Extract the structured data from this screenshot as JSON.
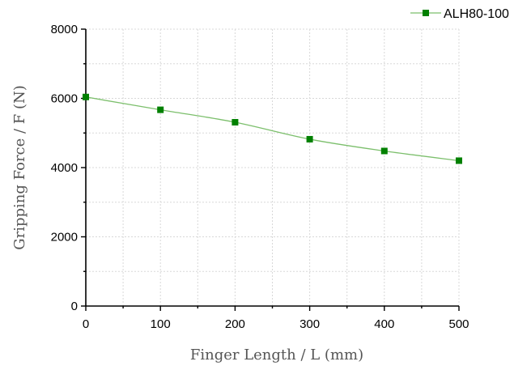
{
  "chart_data": {
    "type": "line",
    "title": "",
    "xlabel": "Finger Length / L (mm)",
    "ylabel": "Gripping Force / F (N)",
    "xlim": [
      0,
      500
    ],
    "ylim": [
      0,
      8000
    ],
    "x_ticks": [
      0,
      100,
      200,
      300,
      400,
      500
    ],
    "y_ticks": [
      0,
      2000,
      4000,
      6000,
      8000
    ],
    "x_minor_step": 50,
    "y_minor_step": 1000,
    "grid": true,
    "legend": "top-right",
    "series": [
      {
        "name": "ALH80-100",
        "color": "#008000",
        "line_color": "#7cbf6c",
        "marker": "square",
        "x": [
          0,
          100,
          200,
          300,
          400,
          500
        ],
        "y": [
          6040,
          5670,
          5310,
          4820,
          4480,
          4200
        ]
      }
    ]
  }
}
